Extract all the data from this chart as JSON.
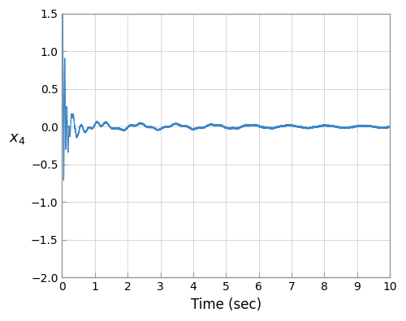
{
  "xlim": [
    0,
    10
  ],
  "ylim": [
    -2,
    1.5
  ],
  "xlabel": "Time (sec)",
  "ylabel": "x₄",
  "xticks": [
    0,
    1,
    2,
    3,
    4,
    5,
    6,
    7,
    8,
    9,
    10
  ],
  "yticks": [
    -2,
    -1.5,
    -1,
    -0.5,
    0,
    0.5,
    1,
    1.5
  ],
  "line_color": "#3D85C8",
  "line_width": 0.9,
  "grid_color": "#d0d0d0",
  "background_color": "#ffffff",
  "fig_facecolor": "#ffffff",
  "dt": 0.0005,
  "t_end": 10.0,
  "font_size_label": 12,
  "font_size_tick": 10,
  "spine_color": "#999999"
}
